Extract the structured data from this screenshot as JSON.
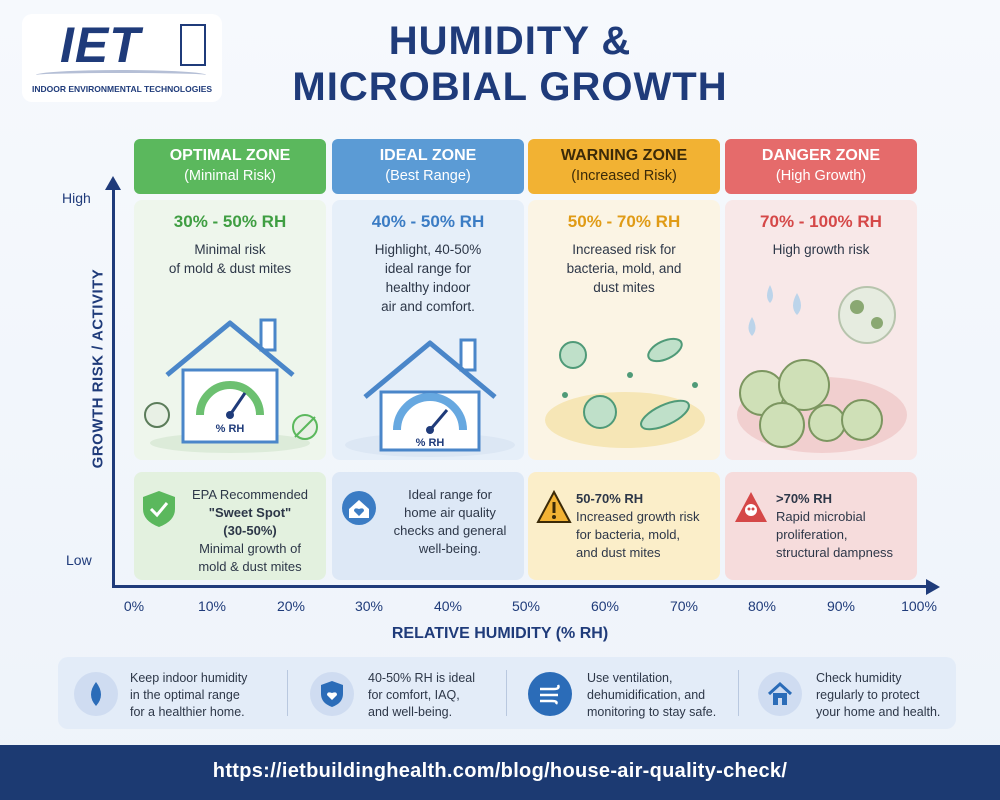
{
  "logo": {
    "mark": "IET",
    "subtitle": "INDOOR ENVIRONMENTAL TECHNOLOGIES"
  },
  "title": {
    "line1": "HUMIDITY &",
    "line2": "MICROBIAL GROWTH"
  },
  "colors": {
    "optimal": "#5bb85d",
    "ideal": "#5b9bd5",
    "warning": "#f2b233",
    "danger": "#e05b5b",
    "navy": "#1f3b7a"
  },
  "zones": [
    {
      "name": "OPTIMAL ZONE",
      "sub": "(Minimal Risk)",
      "range": "30% - 50% RH",
      "desc": [
        "Minimal risk",
        "of mold & dust mites"
      ],
      "box": [
        "EPA Recommended",
        "\"Sweet Spot\"",
        "(30-50%)",
        "Minimal growth of",
        "mold & dust mites"
      ],
      "icon": "shield-check-icon"
    },
    {
      "name": "IDEAL ZONE",
      "sub": "(Best Range)",
      "range": "40% - 50% RH",
      "desc": [
        "Highlight, 40-50%",
        "ideal range for",
        "healthy indoor",
        "air and comfort."
      ],
      "box": [
        "Ideal range for",
        "home air quality",
        "checks and general",
        "well-being."
      ],
      "icon": "house-heart-icon"
    },
    {
      "name": "WARNING ZONE",
      "sub": "(Increased Risk)",
      "range": "50% - 70% RH",
      "desc": [
        "Increased risk for",
        "bacteria, mold, and",
        "dust mites"
      ],
      "box": [
        "50-70% RH",
        "Increased growth risk",
        "for bacteria, mold,",
        "and dust mites"
      ],
      "icon": "warning-triangle-icon"
    },
    {
      "name": "DANGER ZONE",
      "sub": "(High Growth)",
      "range": "70% - 100% RH",
      "desc": [
        "High growth risk"
      ],
      "box": [
        ">70% RH",
        "Rapid microbial",
        "proliferation,",
        "structural dampness"
      ],
      "icon": "skull-warning-icon"
    }
  ],
  "gauge_label": "% RH",
  "axis": {
    "y_label": "GROWTH RISK / ACTIVITY",
    "y_high": "High",
    "y_low": "Low",
    "x_label": "RELATIVE HUMIDITY (% RH)",
    "x_ticks": [
      "0%",
      "10%",
      "20%",
      "30%",
      "40%",
      "50%",
      "60%",
      "70%",
      "80%",
      "90%",
      "100%"
    ]
  },
  "tips": [
    {
      "icon": "water-drop-icon",
      "lines": [
        "Keep indoor humidity",
        "in the optimal range",
        "for a healthier home."
      ]
    },
    {
      "icon": "shield-heart-icon",
      "lines": [
        "40-50% RH is ideal",
        "for comfort, IAQ,",
        "and well-being."
      ]
    },
    {
      "icon": "airflow-icon",
      "lines": [
        "Use ventilation,",
        "dehumidification, and",
        "monitoring to stay safe."
      ]
    },
    {
      "icon": "home-icon",
      "lines": [
        "Check humidity",
        "regularly to protect",
        "your home and health."
      ]
    }
  ],
  "footer": {
    "url": "https://ietbuildinghealth.com/blog/house-air-quality-check/"
  }
}
